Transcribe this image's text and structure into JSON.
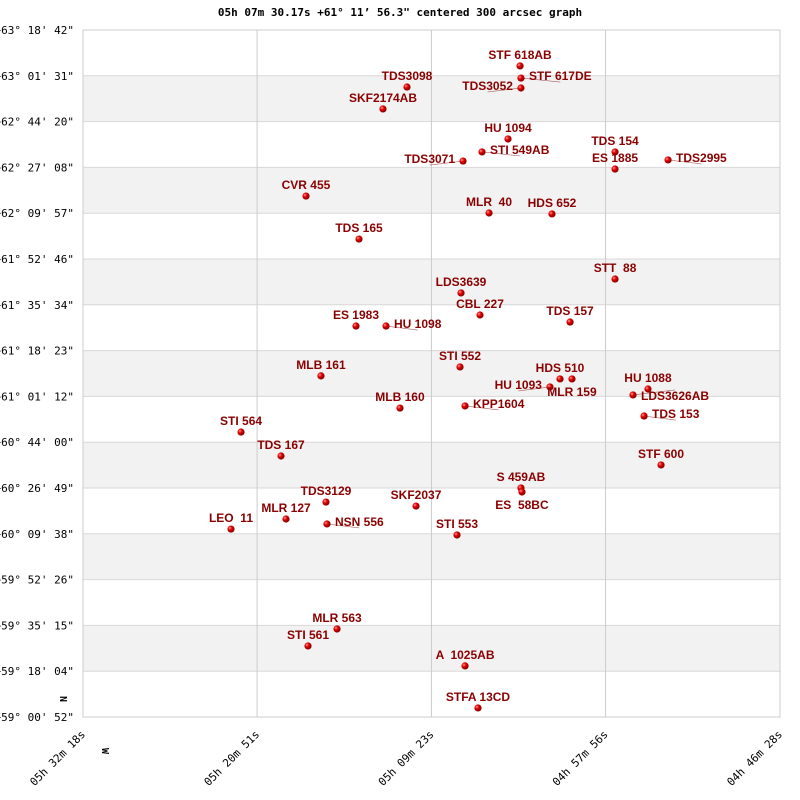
{
  "chart_data": {
    "type": "scatter",
    "title": "05h 07m 30.17s +61° 11’ 56.3\" centered 300 arcsec graph",
    "x_axis": {
      "quantity": "Right Ascension (hours)",
      "range": [
        5.5383,
        4.7744
      ],
      "reversed": true,
      "ticks": [
        5.5383,
        5.3475,
        5.1564,
        4.9656,
        4.7744
      ],
      "tick_labels": [
        "05h 32m 18s",
        "05h 20m 51s",
        "05h 09m 23s",
        "04h 57m 56s",
        "04h 46m 28s"
      ]
    },
    "y_axis": {
      "quantity": "Declination (degrees)",
      "range": [
        59.0144,
        63.3117
      ],
      "tick_labels": [
        "+63° 18' 42\"",
        "+63° 01' 31\"",
        "+62° 44' 20\"",
        "+62° 27' 08\"",
        "+62° 09' 57\"",
        "+61° 52' 46\"",
        "+61° 35' 34\"",
        "+61° 18' 23\"",
        "+61° 01' 12\"",
        "+60° 44' 00\"",
        "+60° 26' 49\"",
        "+60° 09' 38\"",
        "+59° 52' 26\"",
        "+59° 35' 15\"",
        "+59° 18' 04\"",
        "+59° 00' 52\""
      ]
    },
    "compass": {
      "north": "N",
      "west": "W"
    },
    "grid": true,
    "colors": {
      "point": "#e00000",
      "label": "#8b0000",
      "band": "#f2f2f2",
      "grid": "#d8d8d8"
    },
    "points": [
      {
        "name": "STF 618AB",
        "ra": 5.0593,
        "dec": 63.087
      },
      {
        "name": "STF 617DE",
        "ra": 5.0583,
        "dec": 63.011
      },
      {
        "name": "TDS3052",
        "ra": 5.0583,
        "dec": 62.949
      },
      {
        "name": "TDS3098",
        "ra": 5.1832,
        "dec": 62.955
      },
      {
        "name": "SKF2174AB",
        "ra": 5.2095,
        "dec": 62.818
      },
      {
        "name": "HU 1094",
        "ra": 5.0725,
        "dec": 62.63
      },
      {
        "name": "STI 549AB",
        "ra": 5.101,
        "dec": 62.549
      },
      {
        "name": "TDS3071",
        "ra": 5.1218,
        "dec": 62.492
      },
      {
        "name": "TDS 154",
        "ra": 4.9552,
        "dec": 62.549
      },
      {
        "name": "ES 1885",
        "ra": 4.9552,
        "dec": 62.442
      },
      {
        "name": "TDS2995",
        "ra": 4.8971,
        "dec": 62.499
      },
      {
        "name": "CVR 455",
        "ra": 5.2939,
        "dec": 62.273
      },
      {
        "name": "MLR  40",
        "ra": 5.0933,
        "dec": 62.167
      },
      {
        "name": "HDS 652",
        "ra": 5.0243,
        "dec": 62.161
      },
      {
        "name": "TDS 165",
        "ra": 5.2358,
        "dec": 62.004
      },
      {
        "name": "STT  88",
        "ra": 4.9552,
        "dec": 61.754
      },
      {
        "name": "LDS3639",
        "ra": 5.124,
        "dec": 61.667
      },
      {
        "name": "CBL 227",
        "ra": 5.1032,
        "dec": 61.529
      },
      {
        "name": "TDS 157",
        "ra": 5.0045,
        "dec": 61.485
      },
      {
        "name": "ES 1983",
        "ra": 5.2391,
        "dec": 61.46
      },
      {
        "name": "HU 1098",
        "ra": 5.2062,
        "dec": 61.46
      },
      {
        "name": "STI 552",
        "ra": 5.1251,
        "dec": 61.204
      },
      {
        "name": "MLB 161",
        "ra": 5.2775,
        "dec": 61.148
      },
      {
        "name": "HDS 510",
        "ra": 5.0155,
        "dec": 61.129
      },
      {
        "name": "MLR 159",
        "ra": 5.0024,
        "dec": 61.129
      },
      {
        "name": "HU 1093",
        "ra": 5.0265,
        "dec": 61.079
      },
      {
        "name": "HU 1088",
        "ra": 4.9191,
        "dec": 61.066
      },
      {
        "name": "LDS3626AB",
        "ra": 4.9355,
        "dec": 61.029
      },
      {
        "name": "TDS 153",
        "ra": 4.9234,
        "dec": 60.897
      },
      {
        "name": "MLB 160",
        "ra": 5.1909,
        "dec": 60.947
      },
      {
        "name": "KPP1604",
        "ra": 5.1196,
        "dec": 60.96
      },
      {
        "name": "STI 564",
        "ra": 5.3651,
        "dec": 60.797
      },
      {
        "name": "TDS 167",
        "ra": 5.3213,
        "dec": 60.647
      },
      {
        "name": "STF 600",
        "ra": 4.9048,
        "dec": 60.591
      },
      {
        "name": "S 459AB",
        "ra": 5.0583,
        "dec": 60.447
      },
      {
        "name": "ES  58BC",
        "ra": 5.0572,
        "dec": 60.422
      },
      {
        "name": "TDS3129",
        "ra": 5.272,
        "dec": 60.359
      },
      {
        "name": "SKF2037",
        "ra": 5.1733,
        "dec": 60.334
      },
      {
        "name": "MLR 127",
        "ra": 5.3158,
        "dec": 60.253
      },
      {
        "name": "NSN 556",
        "ra": 5.2709,
        "dec": 60.222
      },
      {
        "name": "LEO  11",
        "ra": 5.3761,
        "dec": 60.19
      },
      {
        "name": "STI 553",
        "ra": 5.1284,
        "dec": 60.153
      },
      {
        "name": "MLR 563",
        "ra": 5.2599,
        "dec": 59.565
      },
      {
        "name": "STI 561",
        "ra": 5.2917,
        "dec": 59.459
      },
      {
        "name": "A  1025AB",
        "ra": 5.1196,
        "dec": 59.334
      },
      {
        "name": "STFA 13CD",
        "ra": 5.1054,
        "dec": 59.071
      }
    ]
  }
}
